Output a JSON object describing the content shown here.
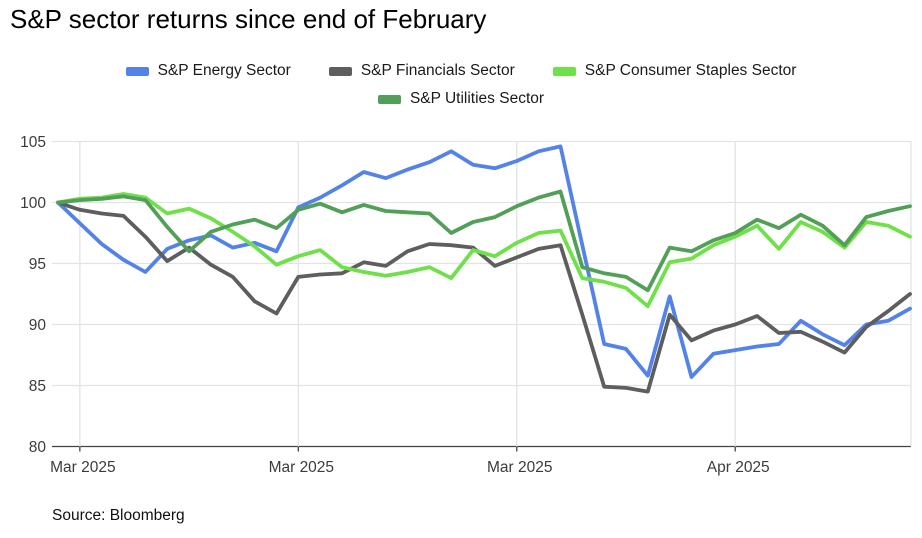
{
  "title": "S&P sector returns since end of February",
  "source": "Source: Bloomberg",
  "colors": {
    "energy_blue": "#5383e8",
    "financials_gray": "#5e5e5e",
    "staples_green": "#70e04a",
    "utilities_green": "#52a058",
    "gridline": "#e3e3e3",
    "axis_line": "#424242",
    "axis_text": "#3c3c3c",
    "title_text": "#000000"
  },
  "chart_data": {
    "type": "line",
    "title": "S&P sector returns since end of February",
    "xlabel": "",
    "ylabel": "",
    "ylim": [
      80,
      105
    ],
    "y_ticks": [
      80,
      85,
      90,
      95,
      100,
      105
    ],
    "x_ticks": [
      {
        "label": "Mar 2025",
        "day": 1
      },
      {
        "label": "Mar 2025",
        "day": 11
      },
      {
        "label": "Mar 2025",
        "day": 21
      },
      {
        "label": "Apr 2025",
        "day": 31
      }
    ],
    "n_points": 40,
    "grid": true,
    "legend_position": "top",
    "series": [
      {
        "name": "S&P Energy Sector",
        "color": "#5383e8",
        "values": [
          100,
          98.3,
          96.6,
          95.3,
          94.3,
          96.2,
          96.9,
          97.3,
          96.3,
          96.7,
          96.0,
          99.6,
          100.4,
          101.4,
          102.5,
          102.0,
          102.7,
          103.3,
          104.2,
          103.1,
          102.8,
          103.4,
          104.2,
          104.6,
          96.5,
          88.4,
          88.0,
          85.8,
          92.3,
          85.7,
          87.6,
          87.9,
          88.2,
          88.4,
          90.3,
          89.2,
          88.3,
          90.0,
          90.3,
          91.3
        ]
      },
      {
        "name": "S&P Financials Sector",
        "color": "#5e5e5e",
        "values": [
          100,
          99.4,
          99.1,
          98.9,
          97.2,
          95.2,
          96.3,
          94.9,
          93.9,
          91.9,
          90.9,
          93.9,
          94.1,
          94.2,
          95.1,
          94.8,
          96.0,
          96.6,
          96.5,
          96.3,
          94.8,
          95.5,
          96.2,
          96.5,
          90.8,
          84.9,
          84.8,
          84.5,
          90.8,
          88.7,
          89.5,
          90.0,
          90.7,
          89.3,
          89.4,
          88.6,
          87.7,
          89.8,
          91.1,
          92.5
        ]
      },
      {
        "name": "S&P Consumer Staples Sector",
        "color": "#70e04a",
        "values": [
          100,
          100.3,
          100.4,
          100.7,
          100.4,
          99.1,
          99.5,
          98.7,
          97.6,
          96.4,
          94.9,
          95.6,
          96.1,
          94.7,
          94.3,
          94.0,
          94.3,
          94.7,
          93.8,
          96.1,
          95.6,
          96.7,
          97.5,
          97.7,
          93.8,
          93.5,
          93.0,
          91.5,
          95.1,
          95.4,
          96.5,
          97.2,
          98.1,
          96.2,
          98.4,
          97.6,
          96.3,
          98.4,
          98.1,
          97.2
        ]
      },
      {
        "name": "S&P Utilities Sector",
        "color": "#52a058",
        "values": [
          100,
          100.2,
          100.3,
          100.5,
          100.2,
          98.0,
          96.0,
          97.6,
          98.2,
          98.6,
          97.9,
          99.4,
          99.9,
          99.2,
          99.8,
          99.3,
          99.2,
          99.1,
          97.5,
          98.4,
          98.8,
          99.7,
          100.4,
          100.9,
          94.7,
          94.2,
          93.9,
          92.8,
          96.3,
          96.0,
          96.9,
          97.5,
          98.6,
          97.9,
          99.0,
          98.1,
          96.5,
          98.8,
          99.3,
          99.7
        ]
      }
    ]
  }
}
